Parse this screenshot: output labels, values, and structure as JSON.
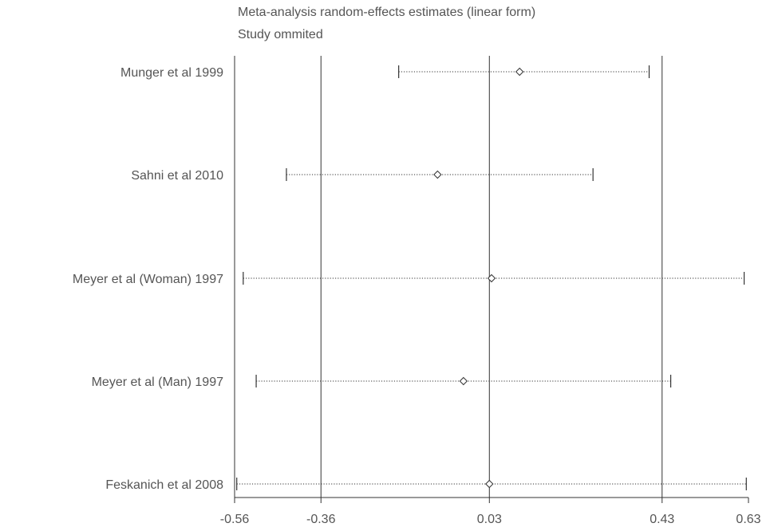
{
  "chart_data": {
    "type": "forest",
    "title": "Meta-analysis random-effects estimates (linear form)",
    "subtitle": "Study ommited",
    "x_ticks": [
      "-0.56",
      "-0.36",
      "0.03",
      "0.43",
      "0.63"
    ],
    "x_tick_values": [
      -0.56,
      -0.36,
      0.03,
      0.43,
      0.63
    ],
    "xlim": [
      -0.56,
      0.63
    ],
    "reference_lines": [
      -0.36,
      0.03,
      0.43
    ],
    "studies": [
      {
        "label": "Munger et al 1999",
        "estimate": 0.1,
        "lower": -0.18,
        "upper": 0.4
      },
      {
        "label": "Sahni et al 2010",
        "estimate": -0.09,
        "lower": -0.44,
        "upper": 0.27
      },
      {
        "label": "Meyer et al (Woman) 1997",
        "estimate": 0.035,
        "lower": -0.54,
        "upper": 0.62
      },
      {
        "label": "Meyer et al (Man) 1997",
        "estimate": -0.03,
        "lower": -0.51,
        "upper": 0.45
      },
      {
        "label": "Feskanich et al 2008",
        "estimate": 0.03,
        "lower": -0.555,
        "upper": 0.625
      }
    ],
    "colors": {
      "line": "#333333",
      "text": "#555555"
    }
  }
}
